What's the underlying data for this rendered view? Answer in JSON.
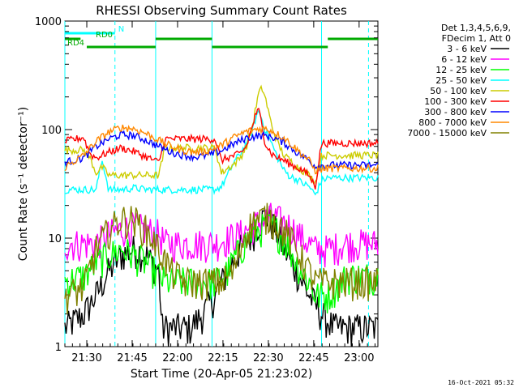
{
  "chart_data": {
    "type": "line",
    "title": "RHESSI Observing Summary Count Rates",
    "xlabel": "Start Time (20-Apr-05 21:23:02)",
    "ylabel": "Count Rate (s⁻¹ detector⁻¹)",
    "yscale": "log",
    "ylim": [
      1,
      1000
    ],
    "xlim": [
      0,
      100
    ],
    "x_tick_labels": [
      "21:30",
      "21:45",
      "22:00",
      "22:15",
      "22:30",
      "22:45",
      "23:00"
    ],
    "x_ticks": [
      7,
      21.5,
      36,
      50.5,
      65,
      79.5,
      94
    ],
    "y_tick_labels": [
      "1",
      "10",
      "100",
      "1000"
    ],
    "y_ticks": [
      1,
      10,
      100,
      1000
    ],
    "legend_header": [
      "Det 1,3,4,5,6,9,",
      "FDecim 1, Att 0"
    ],
    "legend_position": "right",
    "series": [
      {
        "name": "3 - 6 keV",
        "color": "#000000",
        "x": [
          0,
          6,
          10,
          14,
          18,
          22,
          26,
          30,
          31,
          32,
          36,
          40,
          44,
          48,
          52,
          56,
          60,
          62,
          64,
          65,
          66,
          68,
          70,
          74,
          78,
          82,
          86,
          90,
          94,
          100
        ],
        "y": [
          1.5,
          2,
          3,
          5,
          7,
          8,
          7,
          5,
          1.5,
          1.5,
          1.5,
          1.5,
          2,
          3,
          5,
          8,
          11,
          14,
          16,
          16,
          14,
          11,
          8,
          5,
          3,
          2,
          1.5,
          1.5,
          1.5,
          1.5
        ]
      },
      {
        "name": "6 - 12 keV",
        "color": "#ff00ff",
        "x": [
          0,
          10,
          14,
          18,
          22,
          26,
          30,
          32,
          40,
          48,
          52,
          56,
          60,
          64,
          66,
          68,
          72,
          76,
          80,
          84,
          90,
          100
        ],
        "y": [
          9,
          9,
          11,
          12,
          13,
          12,
          11,
          9,
          9,
          9,
          10,
          11,
          13,
          15,
          16,
          15,
          13,
          10,
          8,
          8,
          9,
          9
        ]
      },
      {
        "name": "12 - 25 keV",
        "color": "#00ff00",
        "x": [
          0,
          6,
          10,
          14,
          18,
          22,
          26,
          30,
          32,
          40,
          48,
          52,
          56,
          60,
          64,
          66,
          70,
          74,
          78,
          80,
          84,
          90,
          100
        ],
        "y": [
          4,
          4.5,
          6,
          7,
          8,
          7,
          6,
          4.5,
          4,
          4,
          4,
          5,
          8,
          11,
          13,
          13,
          10,
          6,
          4,
          3,
          3,
          4.5,
          4.5
        ]
      },
      {
        "name": "25 - 50 keV",
        "color": "#00ffff",
        "x": [
          0,
          10,
          11,
          12,
          14,
          18,
          22,
          26,
          30,
          32,
          40,
          48,
          50,
          52,
          54,
          56,
          58,
          60,
          61,
          62,
          64,
          66,
          68,
          70,
          72,
          74,
          76,
          78,
          80,
          82,
          84,
          90,
          100
        ],
        "y": [
          28,
          28,
          40,
          52,
          28,
          28,
          29,
          28,
          28,
          28,
          28,
          28,
          30,
          38,
          50,
          60,
          75,
          100,
          130,
          150,
          100,
          75,
          55,
          42,
          37,
          35,
          32,
          30,
          25,
          34,
          36,
          36,
          36
        ]
      },
      {
        "name": "50 - 100 keV",
        "color": "#cccc00",
        "x": [
          0,
          6,
          8,
          10,
          12,
          14,
          18,
          22,
          26,
          30,
          32,
          40,
          48,
          50,
          52,
          54,
          56,
          58,
          60,
          61,
          62,
          63,
          64,
          66,
          68,
          70,
          72,
          74,
          76,
          78,
          80,
          82,
          84,
          90,
          100
        ],
        "y": [
          65,
          65,
          55,
          40,
          45,
          38,
          38,
          38,
          38,
          38,
          68,
          68,
          68,
          40,
          44,
          48,
          55,
          70,
          110,
          160,
          220,
          240,
          200,
          110,
          75,
          58,
          52,
          46,
          42,
          38,
          33,
          58,
          58,
          58,
          58
        ]
      },
      {
        "name": "100 - 300 keV",
        "color": "#ff0000",
        "x": [
          0,
          6,
          8,
          10,
          14,
          18,
          22,
          26,
          30,
          32,
          40,
          48,
          50,
          52,
          56,
          58,
          60,
          61,
          62,
          63,
          64,
          66,
          68,
          70,
          72,
          74,
          76,
          78,
          80,
          82,
          84,
          90,
          100
        ],
        "y": [
          78,
          85,
          60,
          55,
          62,
          68,
          63,
          56,
          50,
          82,
          82,
          82,
          52,
          55,
          60,
          70,
          110,
          140,
          150,
          110,
          75,
          60,
          55,
          52,
          48,
          45,
          42,
          38,
          30,
          75,
          75,
          75,
          75
        ]
      },
      {
        "name": "300 - 800 keV",
        "color": "#0000ff",
        "x": [
          0,
          6,
          10,
          14,
          18,
          22,
          26,
          30,
          34,
          38,
          42,
          46,
          50,
          54,
          58,
          62,
          64,
          66,
          70,
          74,
          78,
          80,
          84,
          90,
          100
        ],
        "y": [
          50,
          55,
          70,
          82,
          90,
          88,
          80,
          70,
          62,
          58,
          56,
          58,
          64,
          74,
          84,
          88,
          88,
          86,
          76,
          62,
          52,
          46,
          47,
          47,
          47
        ]
      },
      {
        "name": "800 - 7000 keV",
        "color": "#ff8800",
        "x": [
          0,
          6,
          10,
          14,
          18,
          22,
          26,
          30,
          34,
          38,
          42,
          46,
          50,
          54,
          58,
          62,
          64,
          66,
          70,
          74,
          78,
          80,
          84,
          90,
          100
        ],
        "y": [
          45,
          58,
          78,
          95,
          105,
          102,
          92,
          80,
          70,
          64,
          62,
          64,
          72,
          85,
          96,
          102,
          102,
          98,
          84,
          66,
          52,
          42,
          44,
          44,
          44
        ]
      },
      {
        "name": "7000 - 15000 keV",
        "color": "#808000",
        "x": [
          0,
          6,
          10,
          14,
          18,
          22,
          26,
          30,
          34,
          38,
          42,
          46,
          50,
          54,
          56,
          58,
          60,
          62,
          64,
          66,
          68,
          70,
          74,
          78,
          80,
          84,
          90,
          100
        ],
        "y": [
          3,
          3.5,
          8,
          12,
          15,
          15,
          12,
          8,
          5,
          4,
          4,
          4,
          4,
          5,
          8,
          12,
          14,
          15,
          16,
          15,
          14,
          12,
          8,
          5,
          4,
          4,
          4,
          4
        ]
      }
    ],
    "annotations": [
      {
        "label": "N",
        "color": "#00ffff",
        "segments": [
          [
            0,
            16
          ]
        ]
      },
      {
        "label": "RD0",
        "color": "#00aa00",
        "segments": [
          [
            0,
            5
          ],
          [
            29,
            47
          ],
          [
            84,
            100
          ]
        ]
      },
      {
        "label": "RD4",
        "color": "#00aa00",
        "segments": [
          [
            7,
            29
          ],
          [
            47,
            84
          ]
        ]
      }
    ],
    "dashed_vlines_x": [
      16,
      97
    ],
    "solid_vlines_x": [
      0,
      29,
      47,
      82
    ]
  },
  "footer_text": "16-Oct-2021 05:32"
}
